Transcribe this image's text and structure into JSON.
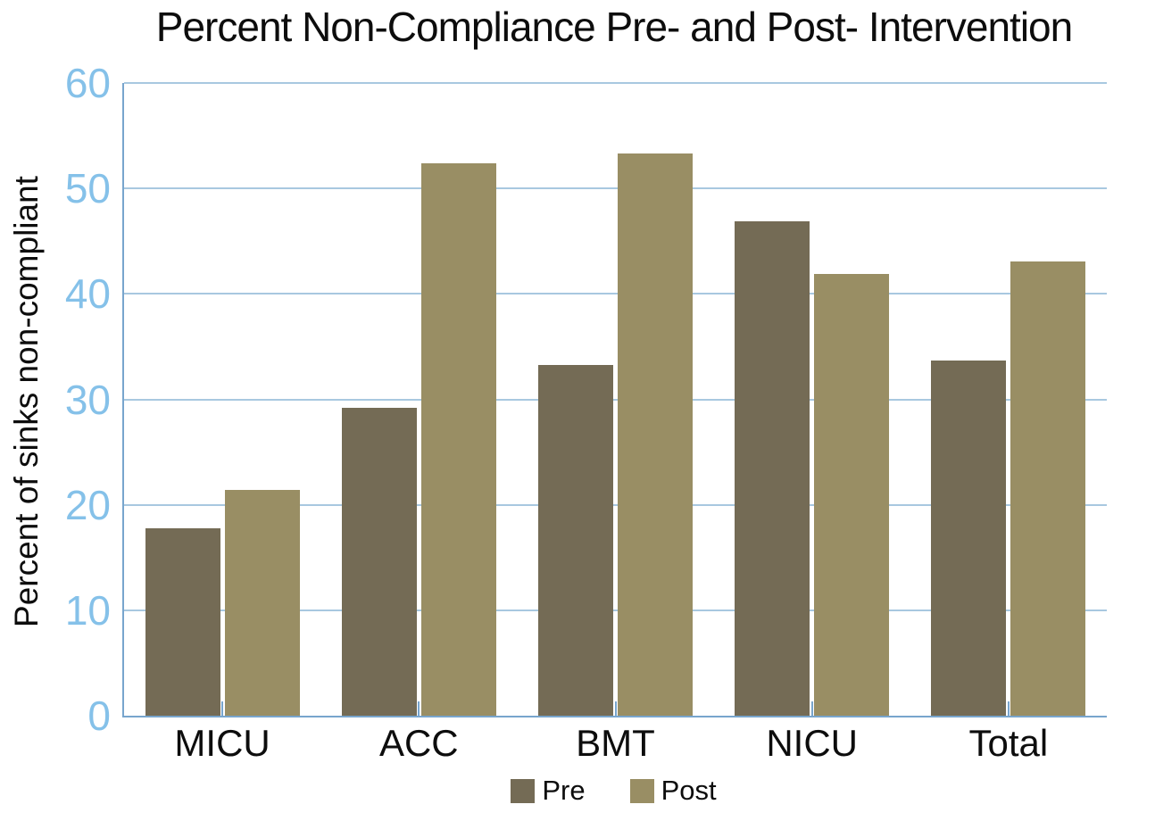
{
  "title": "Percent Non-Compliance Pre- and Post- Intervention",
  "chart_data": {
    "type": "bar",
    "title": "Percent Non-Compliance Pre- and Post- Intervention",
    "ylabel": "Percent of sinks non-compliant",
    "xlabel": "",
    "categories": [
      "MICU",
      "ACC",
      "BMT",
      "NICU",
      "Total"
    ],
    "series": [
      {
        "name": "Pre",
        "color": "#746b55",
        "values": [
          17.8,
          29.2,
          33.3,
          46.9,
          33.7
        ]
      },
      {
        "name": "Post",
        "color": "#998e64",
        "values": [
          21.4,
          52.4,
          53.3,
          41.9,
          43.1
        ]
      }
    ],
    "ylim": [
      0,
      60
    ],
    "yticks": [
      0,
      10,
      20,
      30,
      40,
      50,
      60
    ],
    "grid": true,
    "legend_position": "bottom",
    "colors": {
      "axis_line": "#78a5cd",
      "gridline": "#a8c8e0",
      "y_tick_label": "#85c1e9",
      "text": "#0d0d0d",
      "background": "#ffffff"
    }
  }
}
